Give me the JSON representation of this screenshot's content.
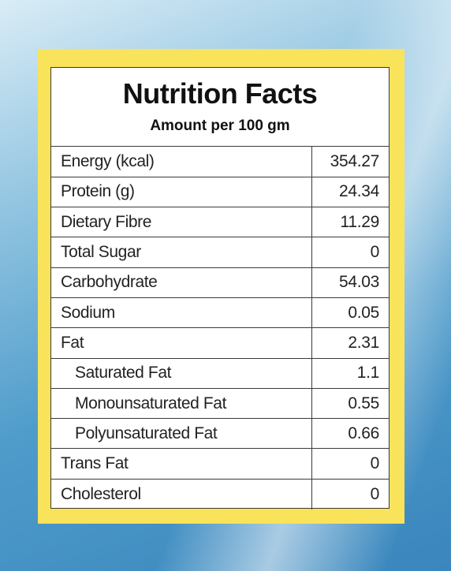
{
  "label": {
    "title": "Nutrition Facts",
    "subtitle": "Amount per 100 gm",
    "rows": [
      {
        "name": "Energy (kcal)",
        "value": "354.27"
      },
      {
        "name": "Protein (g)",
        "value": "24.34"
      },
      {
        "name": "Dietary Fibre",
        "value": "11.29"
      },
      {
        "name": "Total Sugar",
        "value": "0"
      },
      {
        "name": "Carbohydrate",
        "value": "54.03"
      },
      {
        "name": "Sodium",
        "value": "0.05"
      },
      {
        "name": "Fat",
        "value": "2.31"
      },
      {
        "name": "Saturated Fat",
        "value": "1.1"
      },
      {
        "name": "Monounsaturated Fat",
        "value": "0.55"
      },
      {
        "name": "Polyunsaturated Fat",
        "value": "0.66"
      },
      {
        "name": "Trans Fat",
        "value": "0"
      },
      {
        "name": "Cholesterol",
        "value": "0"
      }
    ]
  },
  "colors": {
    "frame": "#f9e35a",
    "background": "#3a86bd",
    "card": "#ffffff",
    "lines": "#3a3a3a"
  }
}
